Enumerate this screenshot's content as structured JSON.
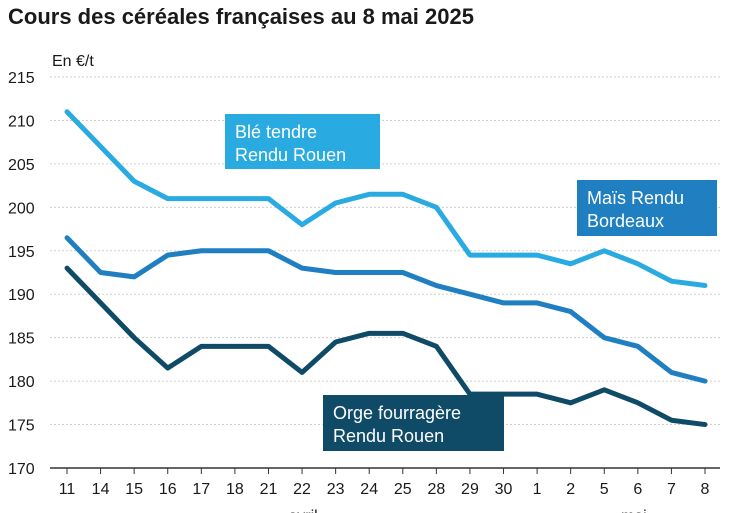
{
  "chart_data": {
    "type": "line",
    "title": "Cours des céréales françaises au 8 mai 2025",
    "ylabel": "En €/t",
    "ylim": [
      170,
      215
    ],
    "yticks": [
      170,
      175,
      180,
      185,
      190,
      195,
      200,
      205,
      210,
      215
    ],
    "categories": [
      "11",
      "14",
      "15",
      "16",
      "17",
      "18",
      "21",
      "22",
      "23",
      "24",
      "25",
      "28",
      "29",
      "30",
      "1",
      "2",
      "5",
      "6",
      "7",
      "8"
    ],
    "month_labels": [
      {
        "label": "avril",
        "at_category": "22"
      },
      {
        "label": "mai",
        "at_category": "6"
      }
    ],
    "grid": true,
    "series": [
      {
        "name": "Blé tendre Rendu Rouen",
        "label_lines": [
          "Blé tendre",
          "Rendu Rouen"
        ],
        "color": "#29abe2",
        "values": [
          211,
          207,
          203,
          201,
          201,
          201,
          201,
          198,
          200.5,
          201.5,
          201.5,
          200,
          194.5,
          194.5,
          194.5,
          193.5,
          195,
          193.5,
          191.5,
          191
        ]
      },
      {
        "name": "Maïs Rendu Bordeaux",
        "label_lines": [
          "Maïs Rendu",
          "Bordeaux"
        ],
        "color": "#1f7fc1",
        "values": [
          196.5,
          192.5,
          192,
          194.5,
          195,
          195,
          195,
          193,
          192.5,
          192.5,
          192.5,
          191,
          190,
          189,
          189,
          188,
          185,
          184,
          181,
          180
        ]
      },
      {
        "name": "Orge fourragère Rendu Rouen",
        "label_lines": [
          "Orge fourragère",
          "Rendu Rouen"
        ],
        "color": "#0f4a66",
        "values": [
          193,
          189,
          185,
          181.5,
          184,
          184,
          184,
          181,
          184.5,
          185.5,
          185.5,
          184,
          178.5,
          178.5,
          178.5,
          177.5,
          179,
          177.5,
          175.5,
          175
        ]
      }
    ]
  }
}
